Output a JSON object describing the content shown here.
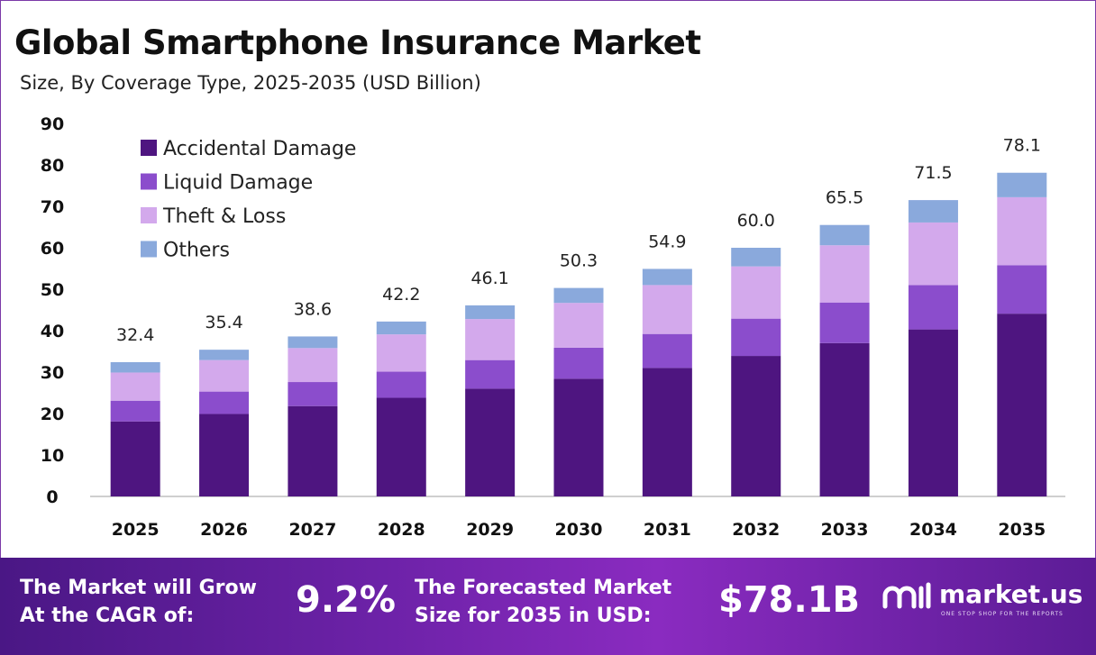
{
  "header": {
    "title": "Global Smartphone Insurance Market",
    "subtitle": "Size, By Coverage Type, 2025-2035 (USD Billion)"
  },
  "chart_data": {
    "type": "bar",
    "stacked": true,
    "categories": [
      "2025",
      "2026",
      "2027",
      "2028",
      "2029",
      "2030",
      "2031",
      "2032",
      "2033",
      "2034",
      "2035"
    ],
    "series": [
      {
        "name": "Accidental Damage",
        "color": "#4e1580",
        "values": [
          18.1,
          19.9,
          21.8,
          23.8,
          26.0,
          28.4,
          31.0,
          33.9,
          37.0,
          40.3,
          44.1
        ]
      },
      {
        "name": "Liquid Damage",
        "color": "#8b4dcc",
        "values": [
          5.0,
          5.4,
          5.8,
          6.3,
          6.9,
          7.5,
          8.2,
          9.0,
          9.8,
          10.7,
          11.7
        ]
      },
      {
        "name": "Theft & Loss",
        "color": "#d3a9ec",
        "values": [
          6.8,
          7.6,
          8.2,
          9.0,
          9.9,
          10.8,
          11.8,
          12.6,
          13.8,
          15.1,
          16.4
        ]
      },
      {
        "name": "Others",
        "color": "#8aa9dc",
        "values": [
          2.5,
          2.5,
          2.8,
          3.1,
          3.3,
          3.6,
          3.9,
          4.5,
          4.9,
          5.4,
          5.9
        ]
      }
    ],
    "totals": [
      "32.4",
      "35.4",
      "38.6",
      "42.2",
      "46.1",
      "50.3",
      "54.9",
      "60.0",
      "65.5",
      "71.5",
      "78.1"
    ],
    "yticks": [
      "0",
      "10",
      "20",
      "30",
      "40",
      "50",
      "60",
      "70",
      "80",
      "90"
    ],
    "ylim": [
      0,
      90
    ],
    "grid": false,
    "legend_position": "top-left"
  },
  "footer": {
    "cagr_label_line1": "The Market will Grow",
    "cagr_label_line2": "At the CAGR of:",
    "cagr_value": "9.2%",
    "forecast_label_line1": "The Forecasted Market",
    "forecast_label_line2": "Size for 2035 in USD:",
    "forecast_value": "$78.1B",
    "brand_name": "market.us",
    "brand_tagline": "ONE STOP SHOP FOR THE REPORTS"
  }
}
